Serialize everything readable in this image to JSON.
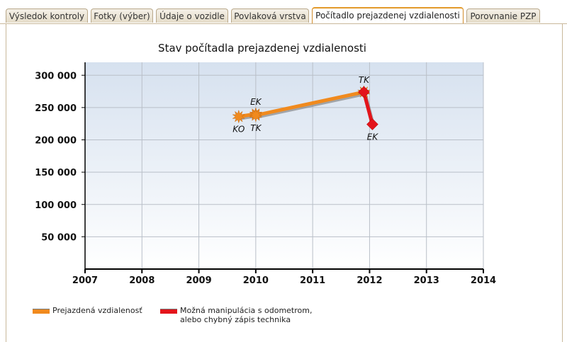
{
  "tabs": [
    {
      "label": "Výsledok kontroly",
      "active": false
    },
    {
      "label": "Fotky (výber)",
      "active": false
    },
    {
      "label": "Údaje o vozidle",
      "active": false
    },
    {
      "label": "Povlaková vrstva",
      "active": false
    },
    {
      "label": "Počítadlo prejazdenej vzdialenosti",
      "active": true
    },
    {
      "label": "Porovnanie PZP",
      "active": false
    }
  ],
  "chart_data": {
    "type": "line",
    "title": "Stav počítadla prejazdenej vzdialenosti",
    "xlim": [
      2007,
      2014
    ],
    "ylim": [
      0,
      320000
    ],
    "x_ticks": [
      2007,
      2008,
      2009,
      2010,
      2011,
      2012,
      2013,
      2014
    ],
    "y_ticks": [
      50000,
      100000,
      150000,
      200000,
      250000,
      300000
    ],
    "y_tick_labels": [
      "50 000",
      "100 000",
      "150 000",
      "200 000",
      "250 000",
      "300 000"
    ],
    "grid": true,
    "series": [
      {
        "name": "Prejazdená vzdialenosť",
        "color": "#f08a1e",
        "marker": "starburst",
        "points": [
          {
            "x": 2009.7,
            "y": 236000,
            "label": "KO",
            "label_pos": "below"
          },
          {
            "x": 2010.0,
            "y": 240000,
            "label": "EK",
            "label_pos": "above"
          },
          {
            "x": 2010.0,
            "y": 238000,
            "label": "TK",
            "label_pos": "below"
          },
          {
            "x": 2011.9,
            "y": 274000,
            "label": "TK",
            "label_pos": "above"
          }
        ]
      },
      {
        "name": "Možná manipulácia s odometrom, alebo chybný zápis technika",
        "color": "#e3141b",
        "marker": "diamond",
        "points": [
          {
            "x": 2011.9,
            "y": 274000,
            "label": "",
            "label_pos": "none"
          },
          {
            "x": 2012.05,
            "y": 224000,
            "label": "EK",
            "label_pos": "below"
          }
        ]
      }
    ],
    "legend": {
      "placement": "bottom-left",
      "items": [
        {
          "label": "Prejazdená vzdialenosť",
          "color": "#f08a1e"
        },
        {
          "label_line1": "Možná manipulácia s odometrom,",
          "label_line2": "alebo chybný zápis technika",
          "color": "#e3141b"
        }
      ]
    }
  }
}
